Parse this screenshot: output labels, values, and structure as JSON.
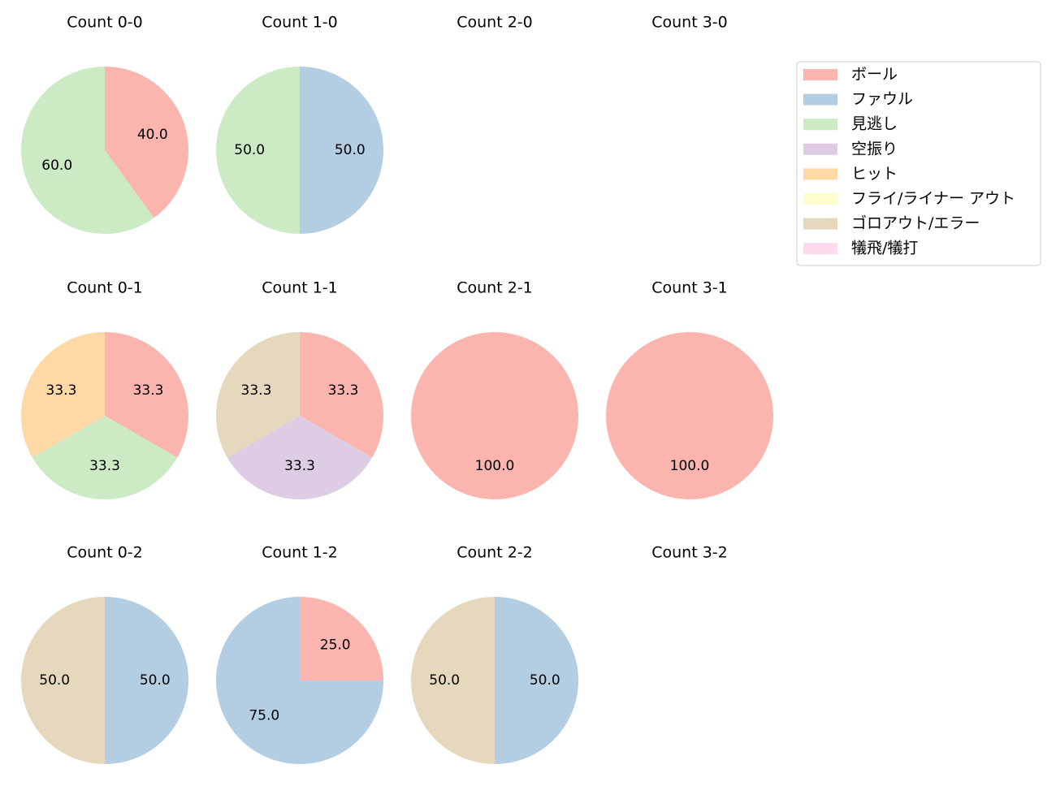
{
  "chart_data": [
    {
      "type": "pie",
      "title": "Count 0-0",
      "categories": [
        "ボール",
        "見逃し"
      ],
      "values": [
        40,
        60
      ],
      "value_labels": [
        "40.0",
        "60.0"
      ],
      "colors": [
        "#fbb4ae",
        "#ccebc5"
      ]
    },
    {
      "type": "pie",
      "title": "Count 1-0",
      "categories": [
        "ファウル",
        "見逃し"
      ],
      "values": [
        50,
        50
      ],
      "value_labels": [
        "50.0",
        "50.0"
      ],
      "colors": [
        "#b3cde3",
        "#ccebc5"
      ]
    },
    {
      "type": "pie",
      "title": "Count 2-0",
      "categories": [],
      "values": [],
      "value_labels": [],
      "colors": []
    },
    {
      "type": "pie",
      "title": "Count 3-0",
      "categories": [],
      "values": [],
      "value_labels": [],
      "colors": []
    },
    {
      "type": "pie",
      "title": "Count 0-1",
      "categories": [
        "ボール",
        "見逃し",
        "ヒット"
      ],
      "values": [
        33.3,
        33.3,
        33.3
      ],
      "value_labels": [
        "33.3",
        "33.3",
        "33.3"
      ],
      "colors": [
        "#fbb4ae",
        "#ccebc5",
        "#fed9a6"
      ]
    },
    {
      "type": "pie",
      "title": "Count 1-1",
      "categories": [
        "ボール",
        "空振り",
        "ゴロアウト/エラー"
      ],
      "values": [
        33.3,
        33.3,
        33.3
      ],
      "value_labels": [
        "33.3",
        "33.3",
        "33.3"
      ],
      "colors": [
        "#fbb4ae",
        "#decbe4",
        "#e5d8bd"
      ]
    },
    {
      "type": "pie",
      "title": "Count 2-1",
      "categories": [
        "ボール"
      ],
      "values": [
        100
      ],
      "value_labels": [
        "100.0"
      ],
      "colors": [
        "#fbb4ae"
      ]
    },
    {
      "type": "pie",
      "title": "Count 3-1",
      "categories": [
        "ボール"
      ],
      "values": [
        100
      ],
      "value_labels": [
        "100.0"
      ],
      "colors": [
        "#fbb4ae"
      ]
    },
    {
      "type": "pie",
      "title": "Count 0-2",
      "categories": [
        "ファウル",
        "ゴロアウト/エラー"
      ],
      "values": [
        50,
        50
      ],
      "value_labels": [
        "50.0",
        "50.0"
      ],
      "colors": [
        "#b3cde3",
        "#e5d8bd"
      ]
    },
    {
      "type": "pie",
      "title": "Count 1-2",
      "categories": [
        "ボール",
        "ファウル"
      ],
      "values": [
        25,
        75
      ],
      "value_labels": [
        "25.0",
        "75.0"
      ],
      "colors": [
        "#fbb4ae",
        "#b3cde3"
      ]
    },
    {
      "type": "pie",
      "title": "Count 2-2",
      "categories": [
        "ファウル",
        "ゴロアウト/エラー"
      ],
      "values": [
        50,
        50
      ],
      "value_labels": [
        "50.0",
        "50.0"
      ],
      "colors": [
        "#b3cde3",
        "#e5d8bd"
      ]
    },
    {
      "type": "pie",
      "title": "Count 3-2",
      "categories": [],
      "values": [],
      "value_labels": [],
      "colors": []
    }
  ],
  "legend": {
    "position": "upper right",
    "entries": [
      {
        "name": "ボール",
        "color": "#fbb4ae"
      },
      {
        "name": "ファウル",
        "color": "#b3cde3"
      },
      {
        "name": "見逃し",
        "color": "#ccebc5"
      },
      {
        "name": "空振り",
        "color": "#decbe4"
      },
      {
        "name": "ヒット",
        "color": "#fed9a6"
      },
      {
        "name": "フライ/ライナー アウト",
        "color": "#ffffcc"
      },
      {
        "name": "ゴロアウト/エラー",
        "color": "#e5d8bd"
      },
      {
        "name": "犠飛/犠打",
        "color": "#fddaec"
      }
    ]
  }
}
